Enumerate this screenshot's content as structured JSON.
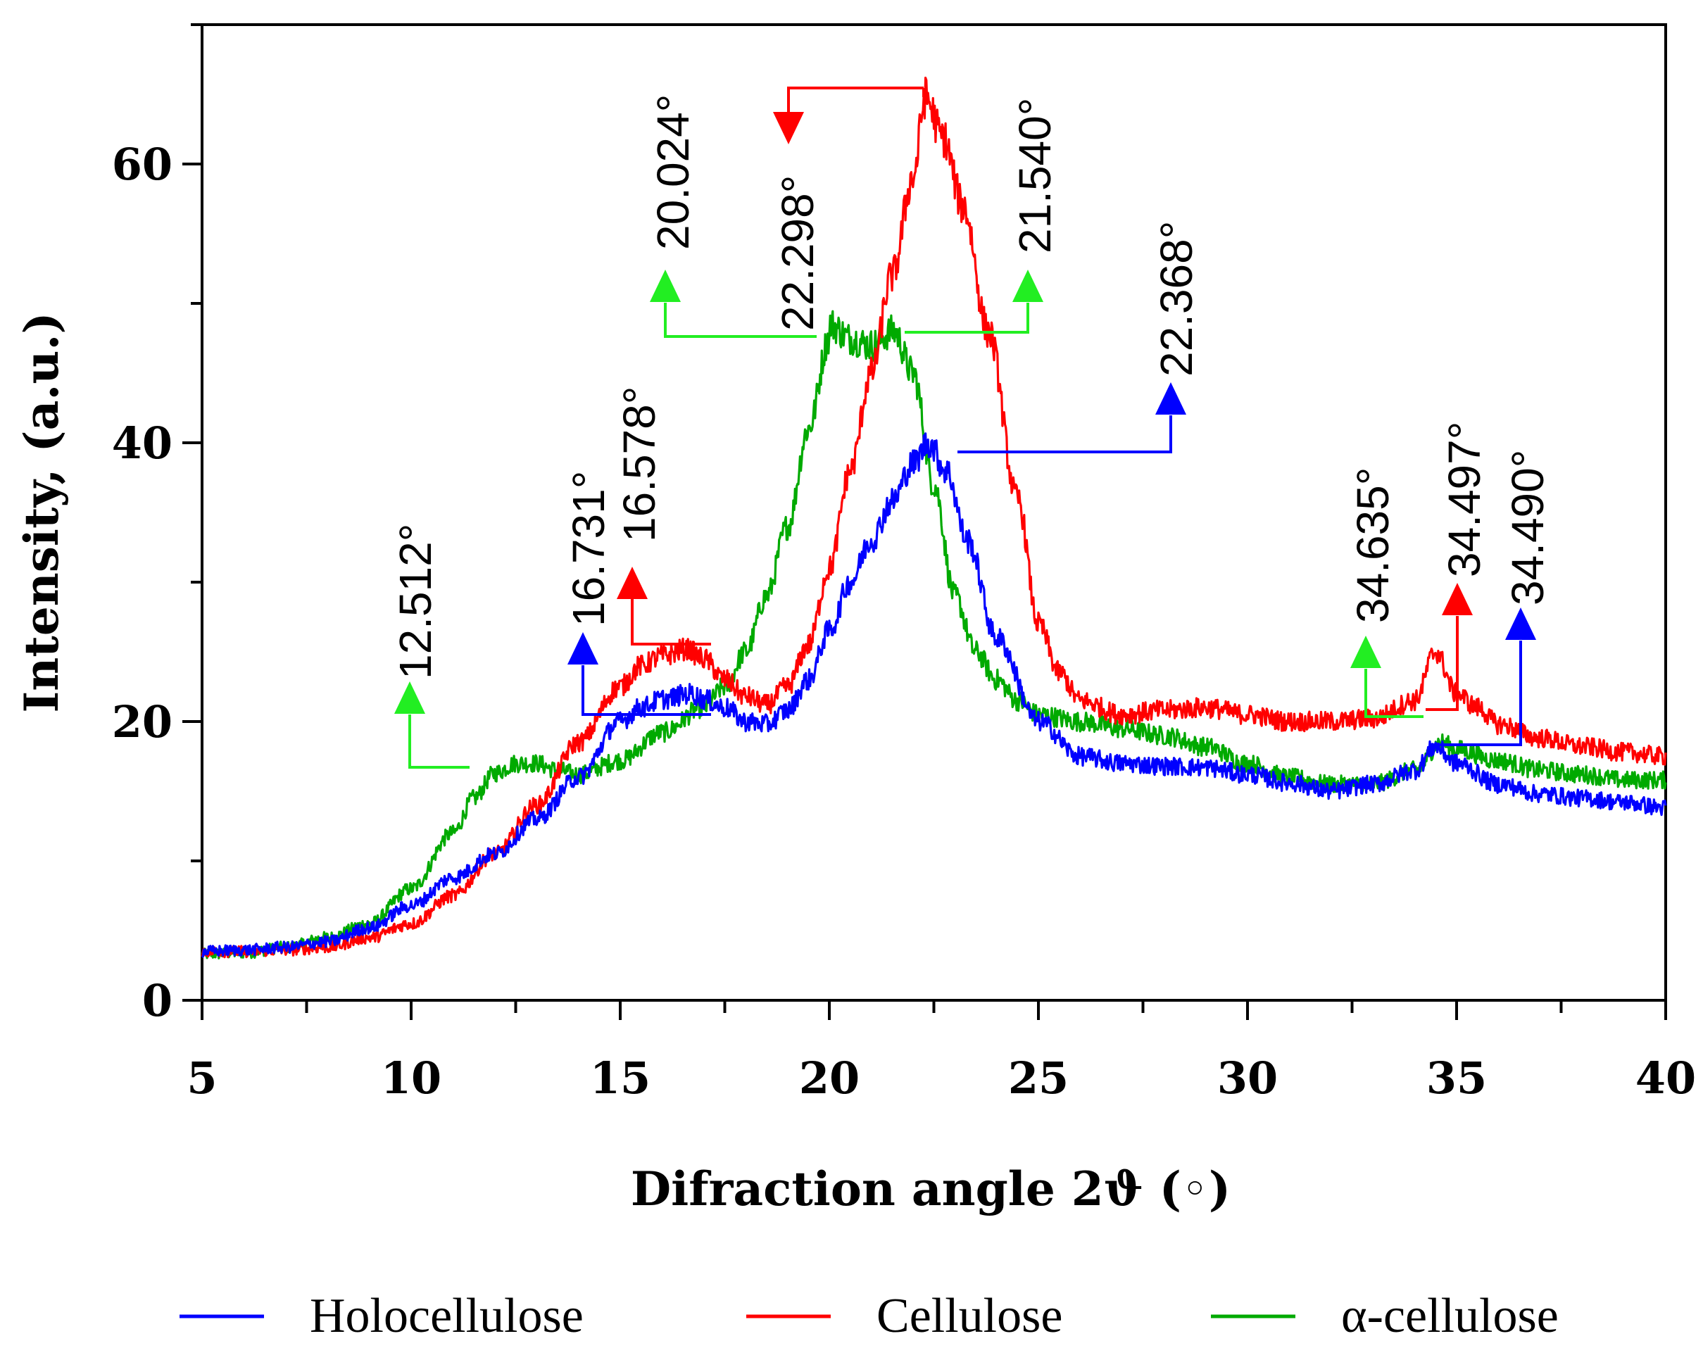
{
  "chart_data": {
    "type": "line",
    "title": "",
    "xlabel": "Difraction angle 2ϑ (◦)",
    "ylabel": "Intensity, (a.u.)",
    "xlim": [
      5,
      40
    ],
    "ylim": [
      0,
      70
    ],
    "x_ticks": [
      5,
      10,
      15,
      20,
      25,
      30,
      35,
      40
    ],
    "x_tick_labels": [
      "5",
      "10",
      "15",
      "20",
      "25",
      "30",
      "35",
      "40"
    ],
    "y_ticks": [
      0,
      20,
      40,
      60
    ],
    "y_tick_labels": [
      "0",
      "20",
      "40",
      "60"
    ],
    "grid": false,
    "legend_position": "bottom",
    "series": [
      {
        "name": "Holocellulose",
        "color": "#0000ff",
        "x": [
          5,
          6,
          7,
          8,
          9,
          10,
          11,
          12,
          13,
          14,
          15,
          15.5,
          16,
          16.7,
          17,
          17.5,
          18,
          18.5,
          19,
          19.5,
          20,
          20.5,
          21,
          21.5,
          22,
          22.37,
          22.8,
          23.3,
          24,
          25,
          26,
          27,
          28,
          29,
          30,
          31,
          32,
          33,
          34,
          34.49,
          35,
          36,
          37,
          38,
          39,
          40
        ],
        "y": [
          3.5,
          3.6,
          3.8,
          4.2,
          5.2,
          6.8,
          8.8,
          10.5,
          13,
          16,
          20,
          21,
          21.6,
          22,
          21.6,
          21,
          20,
          19.8,
          20.8,
          23,
          26.5,
          30,
          33,
          35.8,
          38.5,
          40,
          38,
          33,
          26,
          20,
          17.5,
          17,
          16.8,
          16.7,
          16.2,
          15.6,
          15,
          15.5,
          16.5,
          18.2,
          17,
          15.5,
          14.8,
          14.5,
          14.2,
          13.8
        ]
      },
      {
        "name": "Cellulose",
        "color": "#ff0000",
        "x": [
          5,
          6,
          7,
          8,
          9,
          10,
          11,
          12,
          13,
          14,
          15,
          15.5,
          16,
          16.58,
          17,
          17.5,
          18,
          18.5,
          19,
          19.5,
          20,
          20.5,
          21,
          21.5,
          22,
          22.3,
          22.7,
          23.2,
          23.8,
          24.5,
          25,
          25.5,
          26,
          27,
          28,
          29,
          30,
          31,
          32,
          33,
          34,
          34.497,
          35,
          35.5,
          36,
          37,
          38,
          39,
          40
        ],
        "y": [
          3.5,
          3.5,
          3.6,
          3.8,
          4.5,
          5.5,
          7.5,
          10.5,
          14,
          18.5,
          22.5,
          24,
          24.7,
          25.2,
          24.5,
          23,
          21.8,
          21.2,
          22.5,
          25.5,
          31,
          38,
          45,
          52,
          59,
          64.8,
          62,
          57,
          48,
          36,
          27,
          23.5,
          21.5,
          20.5,
          20.8,
          21,
          20.5,
          20,
          20,
          20.2,
          21.5,
          25,
          22,
          21,
          19.8,
          18.8,
          18.2,
          17.8,
          17.5
        ]
      },
      {
        "name": "α-cellulose",
        "color": "#00aa00",
        "x": [
          5,
          6,
          7,
          8,
          9,
          10,
          11,
          11.5,
          12,
          12.512,
          13,
          13.5,
          14,
          15,
          16,
          17,
          17.5,
          18,
          18.5,
          19,
          19.5,
          20,
          20.024,
          20.5,
          21,
          21.54,
          22,
          22.5,
          23,
          23.5,
          24,
          24.5,
          25,
          26,
          27,
          28,
          29,
          30,
          31,
          32,
          33,
          34,
          34.635,
          35,
          36,
          37,
          38,
          39,
          40
        ],
        "y": [
          3.3,
          3.4,
          3.8,
          4.5,
          5.5,
          8,
          12,
          14.5,
          16.3,
          17,
          17,
          16.5,
          16.2,
          17.2,
          19.2,
          21,
          22.5,
          25,
          29,
          34,
          41,
          47.5,
          48.5,
          47.5,
          47,
          48,
          45,
          37,
          29,
          25,
          23,
          21.5,
          20.5,
          20,
          19.5,
          19,
          18.2,
          17,
          16,
          15.5,
          15.5,
          16.5,
          18.5,
          18,
          17.2,
          16.5,
          16.2,
          15.8,
          15.8
        ]
      }
    ],
    "annotations": [
      {
        "text": "12.512°",
        "series": "α-cellulose",
        "peak_x": 12.512
      },
      {
        "text": "16.731°",
        "series": "Holocellulose",
        "peak_x": 16.731
      },
      {
        "text": "16.578°",
        "series": "Cellulose",
        "peak_x": 16.578
      },
      {
        "text": "20.024°",
        "series": "α-cellulose",
        "peak_x": 20.024
      },
      {
        "text": "22.298°",
        "series": "Cellulose",
        "peak_x": 22.298
      },
      {
        "text": "21.540°",
        "series": "α-cellulose",
        "peak_x": 21.54
      },
      {
        "text": "22.368°",
        "series": "Holocellulose",
        "peak_x": 22.368
      },
      {
        "text": "34.635°",
        "series": "α-cellulose",
        "peak_x": 34.635
      },
      {
        "text": "34.497°",
        "series": "Cellulose",
        "peak_x": 34.497
      },
      {
        "text": "34.490°",
        "series": "Holocellulose",
        "peak_x": 34.49
      }
    ],
    "annotation_colors": {
      "α-cellulose": "#22ee22",
      "Cellulose": "#ff0000",
      "Holocellulose": "#0000ff"
    }
  }
}
